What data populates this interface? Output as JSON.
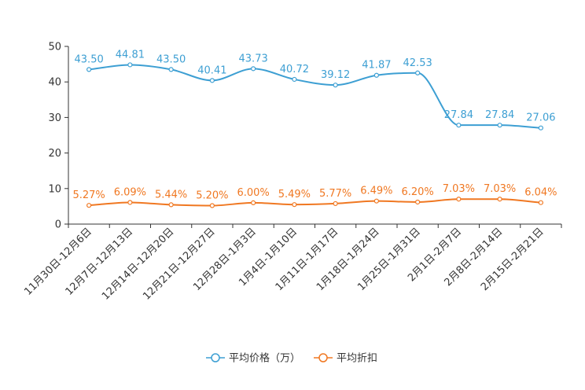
{
  "chart_data": {
    "type": "line",
    "title": "",
    "xlabel": "",
    "ylabel": "",
    "ylim": [
      0,
      50
    ],
    "yticks": [
      0,
      10,
      20,
      30,
      40,
      50
    ],
    "grid": false,
    "legend_position": "bottom-center",
    "categories": [
      "11月30日-12月6日",
      "12月7日-12月13日",
      "12月14日-12月20日",
      "12月21日-12月27日",
      "12月28日-1月3日",
      "1月4日-1月10日",
      "1月11日-1月17日",
      "1月18日-1月24日",
      "1月25日-1月31日",
      "2月1日-2月7日",
      "2月8日-2月14日",
      "2月15日-2月21日"
    ],
    "series": [
      {
        "name": "平均价格（万）",
        "color": "#3d9fd3",
        "values": [
          43.5,
          44.81,
          43.5,
          40.41,
          43.73,
          40.72,
          39.12,
          41.87,
          42.53,
          27.84,
          27.84,
          27.06
        ],
        "labels": [
          "43.50",
          "44.81",
          "43.50",
          "40.41",
          "43.73",
          "40.72",
          "39.12",
          "41.87",
          "42.53",
          "27.84",
          "27.84",
          "27.06"
        ]
      },
      {
        "name": "平均折扣",
        "color": "#f07822",
        "values": [
          5.27,
          6.09,
          5.44,
          5.2,
          6.0,
          5.49,
          5.77,
          6.49,
          6.2,
          7.03,
          7.03,
          6.04
        ],
        "labels": [
          "5.27%",
          "6.09%",
          "5.44%",
          "5.20%",
          "6.00%",
          "5.49%",
          "5.77%",
          "6.49%",
          "6.20%",
          "7.03%",
          "7.03%",
          "6.04%"
        ]
      }
    ]
  }
}
